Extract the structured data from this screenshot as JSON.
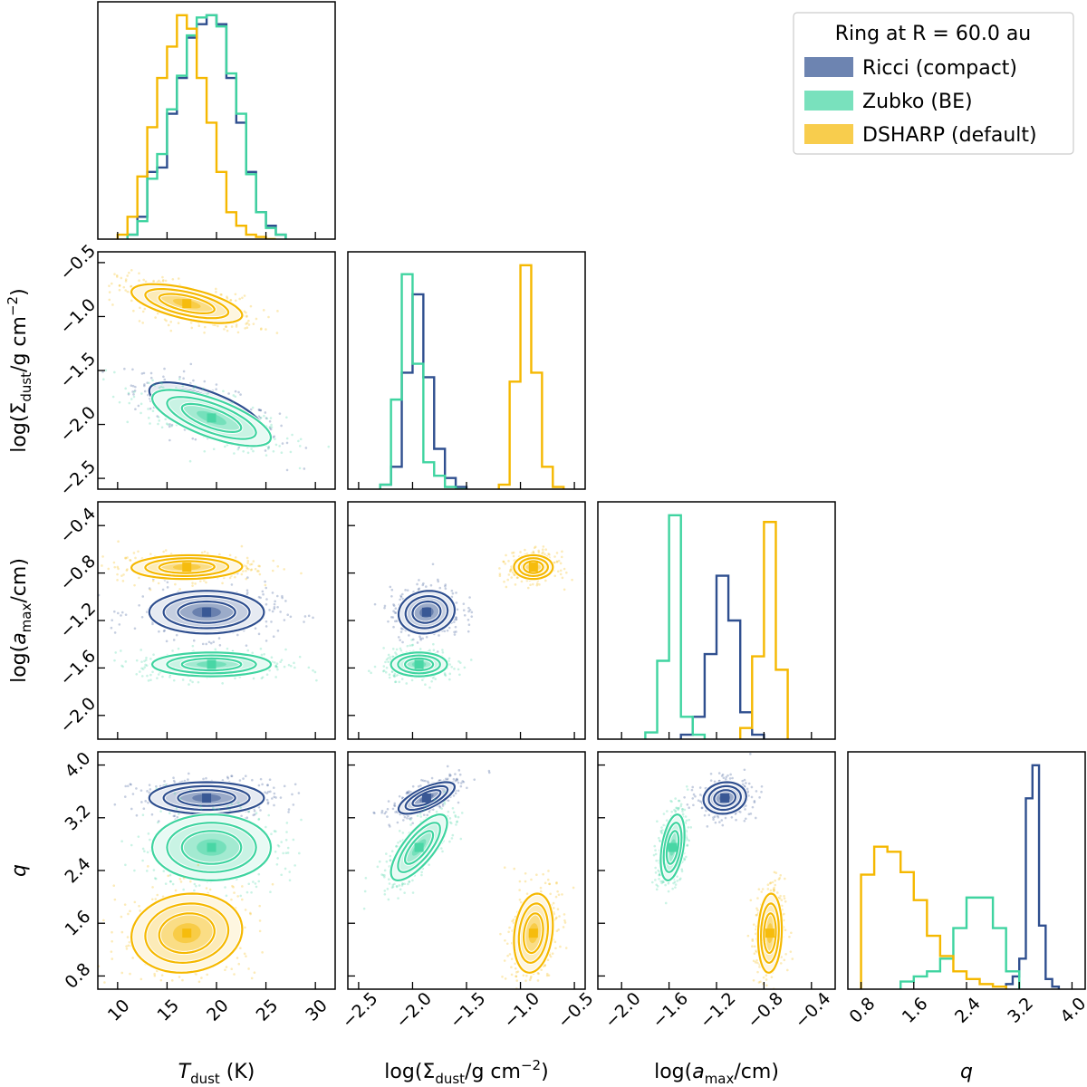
{
  "chart_data": {
    "type": "corner",
    "parameters": [
      {
        "key": "T",
        "label": "T_dust (K)",
        "label_main": "T",
        "label_sub": "dust",
        "label_tail": " (K)",
        "label_italic": true,
        "range": [
          8,
          32
        ],
        "ticks": [
          10,
          15,
          20,
          25,
          30
        ],
        "tick_labels": [
          "10",
          "15",
          "20",
          "25",
          "30"
        ]
      },
      {
        "key": "S",
        "label": "log(Σ_dust/g cm⁻²)",
        "label_main": "log(Σ",
        "label_sub": "dust",
        "label_tail": "/g cm",
        "label_sup": "−2",
        "label_end": ")",
        "label_italic": false,
        "range": [
          -2.6,
          -0.4
        ],
        "ticks": [
          -2.5,
          -2.0,
          -1.5,
          -1.0,
          -0.5
        ],
        "tick_labels": [
          "−2.5",
          "−2.0",
          "−1.5",
          "−1.0",
          "−0.5"
        ]
      },
      {
        "key": "A",
        "label": "log(a_max/cm)",
        "label_main": "log(",
        "label_mainit": "a",
        "label_sub": "max",
        "label_tail": "/cm)",
        "label_italic": false,
        "range": [
          -2.2,
          -0.2
        ],
        "ticks": [
          -2.0,
          -1.6,
          -1.2,
          -0.8,
          -0.4
        ],
        "tick_labels": [
          "−2.0",
          "−1.6",
          "−1.2",
          "−0.8",
          "−0.4"
        ]
      },
      {
        "key": "q",
        "label": "q",
        "label_main": "q",
        "label_italic": true,
        "range": [
          0.6,
          4.2
        ],
        "ticks": [
          0.8,
          1.6,
          2.4,
          3.2,
          4.0
        ],
        "tick_labels": [
          "0.8",
          "1.6",
          "2.4",
          "3.2",
          "4.0"
        ]
      }
    ],
    "legend": {
      "title": "Ring at R = 60.0 au",
      "entries": [
        "Ricci (compact)",
        "Zubko (BE)",
        "DSHARP (default)"
      ]
    },
    "series": [
      {
        "name": "Ricci (compact)",
        "color": "#2f4f8f",
        "mean": {
          "T": 19.0,
          "S": -1.87,
          "A": -1.13,
          "q": 3.5
        },
        "std": {
          "T": 2.9,
          "S": 0.13,
          "A": 0.09,
          "q": 0.12
        },
        "corr": {
          "T_S": -0.7,
          "T_A": 0.0,
          "T_q": 0.0,
          "S_A": 0.1,
          "S_q": 0.7,
          "A_q": 0.1
        },
        "hist": {
          "T": {
            "edges": [
              11,
              12,
              13,
              14,
              15,
              16,
              17,
              18,
              19,
              20,
              21,
              22,
              23,
              24,
              25,
              26,
              27
            ],
            "counts": [
              0.02,
              0.1,
              0.3,
              0.32,
              0.56,
              0.72,
              0.9,
              0.96,
              1.0,
              0.96,
              0.72,
              0.52,
              0.3,
              0.12,
              0.06,
              0.02
            ]
          },
          "S": {
            "edges": [
              -2.3,
              -2.2,
              -2.1,
              -2.0,
              -1.9,
              -1.8,
              -1.7,
              -1.6,
              -1.5
            ],
            "counts": [
              0.02,
              0.1,
              0.52,
              0.87,
              0.5,
              0.18,
              0.05,
              0.01
            ]
          },
          "A": {
            "edges": [
              -1.5,
              -1.4,
              -1.3,
              -1.2,
              -1.1,
              -1.0,
              -0.9,
              -0.8
            ],
            "counts": [
              0.02,
              0.1,
              0.38,
              0.73,
              0.53,
              0.12,
              0.02
            ]
          },
          "q": {
            "edges": [
              3.0,
              3.1,
              3.2,
              3.3,
              3.4,
              3.5,
              3.6,
              3.7,
              3.8
            ],
            "counts": [
              0.02,
              0.05,
              0.12,
              0.75,
              0.88,
              0.25,
              0.04,
              0.01
            ]
          }
        }
      },
      {
        "name": "Zubko (BE)",
        "color": "#3fd4a0",
        "mean": {
          "T": 19.5,
          "S": -1.94,
          "A": -1.57,
          "q": 2.75
        },
        "std": {
          "T": 3.0,
          "S": 0.13,
          "A": 0.05,
          "q": 0.25
        },
        "corr": {
          "T_S": -0.7,
          "T_A": 0.0,
          "T_q": 0.0,
          "S_A": 0.0,
          "S_q": 0.75,
          "A_q": 0.4
        },
        "hist": {
          "T": {
            "edges": [
              11,
              12,
              13,
              14,
              15,
              16,
              17,
              18,
              19,
              20,
              21,
              22,
              23,
              24,
              25,
              26,
              27
            ],
            "counts": [
              0.02,
              0.08,
              0.27,
              0.38,
              0.58,
              0.73,
              0.91,
              0.99,
              1.0,
              0.95,
              0.74,
              0.56,
              0.29,
              0.12,
              0.05,
              0.02
            ]
          },
          "S": {
            "edges": [
              -2.3,
              -2.2,
              -2.1,
              -2.0,
              -1.9,
              -1.8,
              -1.7,
              -1.6,
              -1.5
            ],
            "counts": [
              0.02,
              0.4,
              0.96,
              0.56,
              0.12,
              0.06,
              0.01,
              0.0
            ]
          },
          "A": {
            "edges": [
              -1.8,
              -1.7,
              -1.6,
              -1.5,
              -1.4,
              -1.3
            ],
            "counts": [
              0.03,
              0.35,
              1.0,
              0.1,
              0.02
            ]
          },
          "q": {
            "edges": [
              1.4,
              1.6,
              1.8,
              2.0,
              2.2,
              2.4,
              2.6,
              2.8,
              3.0,
              3.2
            ],
            "counts": [
              0.03,
              0.05,
              0.07,
              0.12,
              0.24,
              0.36,
              0.36,
              0.24,
              0.07
            ]
          }
        }
      },
      {
        "name": "DSHARP (default)",
        "color": "#f5b800",
        "mean": {
          "T": 17.0,
          "S": -0.88,
          "A": -0.75,
          "q": 1.45
        },
        "std": {
          "T": 2.8,
          "S": 0.09,
          "A": 0.05,
          "q": 0.3
        },
        "corr": {
          "T_S": -0.6,
          "T_A": 0.05,
          "T_q": 0.1,
          "S_A": 0.0,
          "S_q": 0.2,
          "A_q": 0.1
        },
        "hist": {
          "T": {
            "edges": [
              10,
              11,
              12,
              13,
              14,
              15,
              16,
              17,
              18,
              19,
              20,
              21,
              22,
              23,
              24,
              25,
              26
            ],
            "counts": [
              0.02,
              0.1,
              0.28,
              0.5,
              0.72,
              0.86,
              1.0,
              0.94,
              0.72,
              0.52,
              0.3,
              0.12,
              0.06,
              0.02,
              0.01,
              0.0
            ]
          },
          "S": {
            "edges": [
              -1.2,
              -1.1,
              -1.0,
              -0.9,
              -0.8,
              -0.7,
              -0.6
            ],
            "counts": [
              0.02,
              0.48,
              1.0,
              0.52,
              0.1,
              0.01
            ]
          },
          "A": {
            "edges": [
              -1.0,
              -0.9,
              -0.8,
              -0.7,
              -0.6
            ],
            "counts": [
              0.05,
              0.37,
              0.97,
              0.31
            ]
          },
          "q": {
            "edges": [
              0.8,
              1.0,
              1.2,
              1.4,
              1.6,
              1.8,
              2.0,
              2.2,
              2.4,
              2.6,
              2.8,
              3.0
            ],
            "counts": [
              0.45,
              0.56,
              0.54,
              0.46,
              0.35,
              0.21,
              0.13,
              0.07,
              0.04,
              0.02,
              0.01
            ]
          }
        }
      }
    ]
  }
}
